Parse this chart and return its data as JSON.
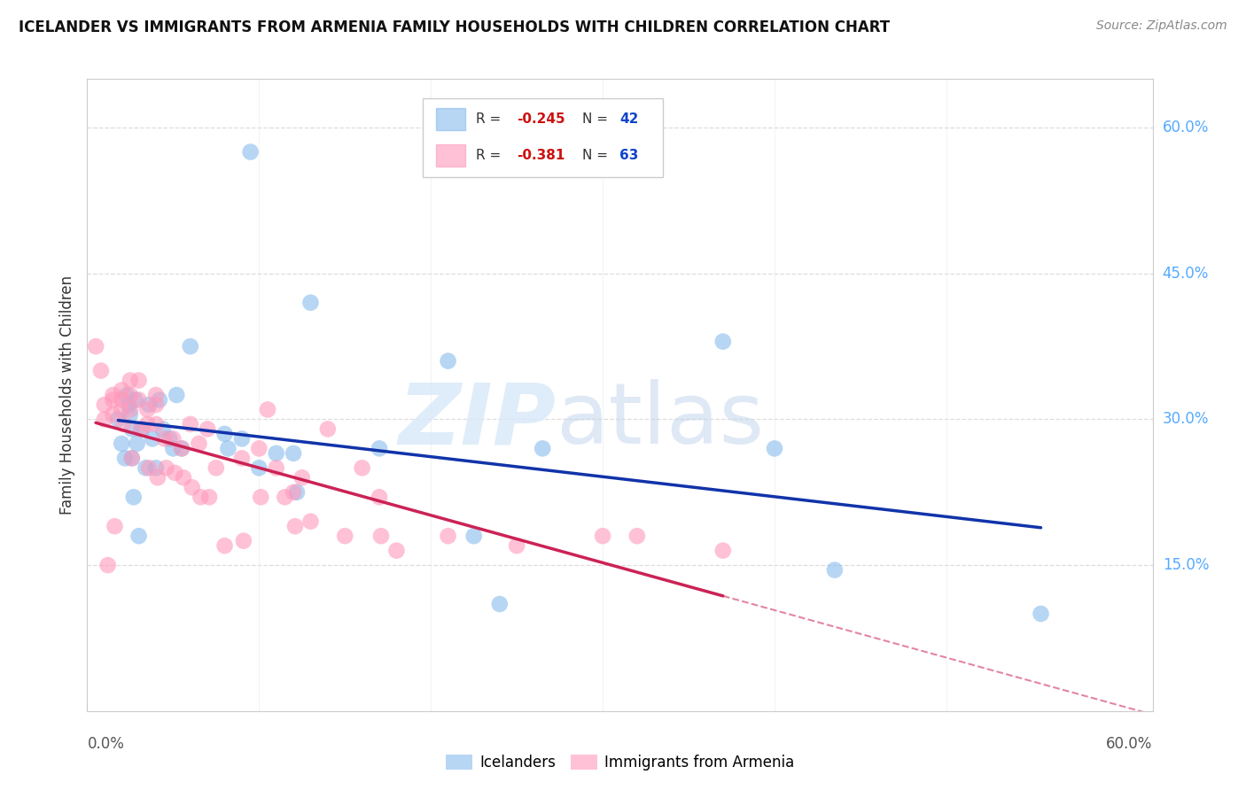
{
  "title": "ICELANDER VS IMMIGRANTS FROM ARMENIA FAMILY HOUSEHOLDS WITH CHILDREN CORRELATION CHART",
  "source": "Source: ZipAtlas.com",
  "ylabel": "Family Households with Children",
  "xlim": [
    0.0,
    0.62
  ],
  "ylim": [
    0.0,
    0.65
  ],
  "yticks": [
    0.15,
    0.3,
    0.45,
    0.6
  ],
  "ytick_labels": [
    "15.0%",
    "30.0%",
    "45.0%",
    "60.0%"
  ],
  "background_color": "#ffffff",
  "icelanders_color": "#88BBEE",
  "armenia_color": "#FF99BB",
  "blue_line_color": "#1133AA",
  "pink_line_color": "#CC2255",
  "grid_color": "#DDDDDD",
  "legend_r1": "-0.245",
  "legend_n1": "42",
  "legend_r2": "-0.381",
  "legend_n2": "63",
  "icelanders_x": [
    0.018,
    0.02,
    0.022,
    0.023,
    0.024,
    0.025,
    0.026,
    0.026,
    0.027,
    0.028,
    0.029,
    0.03,
    0.032,
    0.034,
    0.036,
    0.038,
    0.04,
    0.042,
    0.044,
    0.048,
    0.05,
    0.052,
    0.055,
    0.06,
    0.08,
    0.082,
    0.09,
    0.095,
    0.1,
    0.11,
    0.12,
    0.122,
    0.13,
    0.17,
    0.21,
    0.225,
    0.24,
    0.265,
    0.37,
    0.4,
    0.435,
    0.555
  ],
  "icelanders_y": [
    0.3,
    0.275,
    0.26,
    0.325,
    0.315,
    0.305,
    0.29,
    0.26,
    0.22,
    0.32,
    0.275,
    0.18,
    0.29,
    0.25,
    0.315,
    0.28,
    0.25,
    0.32,
    0.29,
    0.28,
    0.27,
    0.325,
    0.27,
    0.375,
    0.285,
    0.27,
    0.28,
    0.575,
    0.25,
    0.265,
    0.265,
    0.225,
    0.42,
    0.27,
    0.36,
    0.18,
    0.11,
    0.27,
    0.38,
    0.27,
    0.145,
    0.1
  ],
  "armenia_x": [
    0.005,
    0.008,
    0.01,
    0.01,
    0.012,
    0.015,
    0.015,
    0.015,
    0.016,
    0.02,
    0.02,
    0.02,
    0.021,
    0.025,
    0.025,
    0.025,
    0.026,
    0.03,
    0.03,
    0.031,
    0.035,
    0.035,
    0.036,
    0.04,
    0.04,
    0.04,
    0.041,
    0.045,
    0.046,
    0.05,
    0.051,
    0.055,
    0.056,
    0.06,
    0.061,
    0.065,
    0.066,
    0.07,
    0.071,
    0.075,
    0.08,
    0.09,
    0.091,
    0.1,
    0.101,
    0.105,
    0.11,
    0.115,
    0.12,
    0.121,
    0.125,
    0.13,
    0.14,
    0.15,
    0.16,
    0.17,
    0.171,
    0.18,
    0.21,
    0.25,
    0.3,
    0.32,
    0.37
  ],
  "armenia_y": [
    0.375,
    0.35,
    0.315,
    0.3,
    0.15,
    0.325,
    0.32,
    0.305,
    0.19,
    0.33,
    0.32,
    0.31,
    0.295,
    0.34,
    0.325,
    0.31,
    0.26,
    0.34,
    0.32,
    0.29,
    0.31,
    0.295,
    0.25,
    0.325,
    0.315,
    0.295,
    0.24,
    0.28,
    0.25,
    0.28,
    0.245,
    0.27,
    0.24,
    0.295,
    0.23,
    0.275,
    0.22,
    0.29,
    0.22,
    0.25,
    0.17,
    0.26,
    0.175,
    0.27,
    0.22,
    0.31,
    0.25,
    0.22,
    0.225,
    0.19,
    0.24,
    0.195,
    0.29,
    0.18,
    0.25,
    0.22,
    0.18,
    0.165,
    0.18,
    0.17,
    0.18,
    0.18,
    0.165
  ]
}
